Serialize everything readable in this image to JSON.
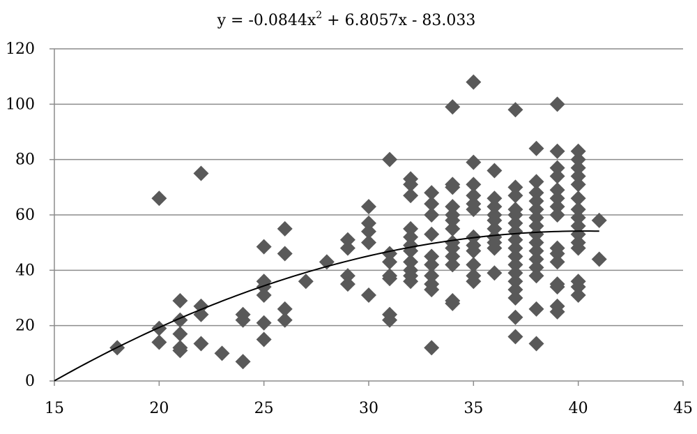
{
  "chart_data": {
    "type": "scatter",
    "title": "",
    "xlabel": "",
    "ylabel": "",
    "xlim": [
      15,
      45
    ],
    "ylim": [
      0,
      120
    ],
    "x_ticks": [
      "15",
      "20",
      "25",
      "30",
      "35",
      "40",
      "45"
    ],
    "y_ticks": [
      "0",
      "20",
      "40",
      "60",
      "80",
      "100",
      "120"
    ],
    "grid": "horizontal",
    "legend": "none",
    "marker": "diamond",
    "marker_color": "#595959",
    "trendline": {
      "type": "polynomial",
      "order": 2,
      "coefficients": [
        -0.0844,
        6.8057,
        -83.033
      ],
      "x_range": [
        15,
        41
      ],
      "color": "#000000",
      "equation_label": {
        "prefix": "y = -0.0844x",
        "power": "2",
        "suffix": " + 6.8057x - 83.033"
      }
    },
    "points": [
      [
        18,
        12
      ],
      [
        20,
        19
      ],
      [
        20,
        14
      ],
      [
        20,
        66
      ],
      [
        21,
        29
      ],
      [
        21,
        22
      ],
      [
        21,
        17
      ],
      [
        21,
        12
      ],
      [
        21,
        11
      ],
      [
        22,
        75
      ],
      [
        22,
        27
      ],
      [
        22,
        24
      ],
      [
        22,
        13.5
      ],
      [
        23,
        10
      ],
      [
        24,
        24
      ],
      [
        24,
        22
      ],
      [
        24,
        7
      ],
      [
        25,
        48.5
      ],
      [
        25,
        36
      ],
      [
        25,
        34
      ],
      [
        25,
        31
      ],
      [
        25,
        21
      ],
      [
        25,
        15
      ],
      [
        26,
        55
      ],
      [
        26,
        46
      ],
      [
        26,
        26
      ],
      [
        26,
        22
      ],
      [
        27,
        36
      ],
      [
        28,
        43
      ],
      [
        29,
        51
      ],
      [
        29,
        48
      ],
      [
        29,
        38
      ],
      [
        29,
        35
      ],
      [
        30,
        63
      ],
      [
        30,
        57
      ],
      [
        30,
        54
      ],
      [
        30,
        50
      ],
      [
        30,
        31
      ],
      [
        31,
        80
      ],
      [
        31,
        46
      ],
      [
        31,
        43
      ],
      [
        31,
        38
      ],
      [
        31,
        37
      ],
      [
        31,
        24
      ],
      [
        31,
        22
      ],
      [
        32,
        73
      ],
      [
        32,
        71
      ],
      [
        32,
        67
      ],
      [
        32,
        55
      ],
      [
        32,
        52
      ],
      [
        32,
        49
      ],
      [
        32,
        47
      ],
      [
        32,
        43
      ],
      [
        32,
        40
      ],
      [
        32,
        38
      ],
      [
        32,
        36
      ],
      [
        33,
        68
      ],
      [
        33,
        64
      ],
      [
        33,
        60
      ],
      [
        33,
        53
      ],
      [
        33,
        45
      ],
      [
        33,
        42
      ],
      [
        33,
        38
      ],
      [
        33,
        35
      ],
      [
        33,
        33
      ],
      [
        33,
        12
      ],
      [
        34,
        99
      ],
      [
        34,
        71
      ],
      [
        34,
        70
      ],
      [
        34,
        63
      ],
      [
        34,
        60
      ],
      [
        34,
        58
      ],
      [
        34,
        55
      ],
      [
        34,
        50
      ],
      [
        34,
        48
      ],
      [
        34,
        45
      ],
      [
        34,
        42
      ],
      [
        34,
        29
      ],
      [
        34,
        28
      ],
      [
        35,
        108
      ],
      [
        35,
        79
      ],
      [
        35,
        71
      ],
      [
        35,
        67
      ],
      [
        35,
        64
      ],
      [
        35,
        62
      ],
      [
        35,
        52
      ],
      [
        35,
        49
      ],
      [
        35,
        47
      ],
      [
        35,
        42
      ],
      [
        35,
        38
      ],
      [
        35,
        36
      ],
      [
        36,
        76
      ],
      [
        36,
        66
      ],
      [
        36,
        63
      ],
      [
        36,
        60
      ],
      [
        36,
        58
      ],
      [
        36,
        55
      ],
      [
        36,
        52
      ],
      [
        36,
        50
      ],
      [
        36,
        48
      ],
      [
        36,
        39
      ],
      [
        37,
        98
      ],
      [
        37,
        70
      ],
      [
        37,
        67
      ],
      [
        37,
        62
      ],
      [
        37,
        60
      ],
      [
        37,
        57
      ],
      [
        37,
        54
      ],
      [
        37,
        51
      ],
      [
        37,
        48
      ],
      [
        37,
        45
      ],
      [
        37,
        42
      ],
      [
        37,
        39
      ],
      [
        37,
        36
      ],
      [
        37,
        33
      ],
      [
        37,
        30
      ],
      [
        37,
        23
      ],
      [
        37,
        16
      ],
      [
        38,
        84
      ],
      [
        38,
        72
      ],
      [
        38,
        68
      ],
      [
        38,
        65
      ],
      [
        38,
        62
      ],
      [
        38,
        59
      ],
      [
        38,
        56
      ],
      [
        38,
        53
      ],
      [
        38,
        50
      ],
      [
        38,
        47
      ],
      [
        38,
        44
      ],
      [
        38,
        41
      ],
      [
        38,
        38
      ],
      [
        38,
        26
      ],
      [
        38,
        13.5
      ],
      [
        39,
        100
      ],
      [
        39,
        83
      ],
      [
        39,
        77
      ],
      [
        39,
        74
      ],
      [
        39,
        69
      ],
      [
        39,
        66
      ],
      [
        39,
        63
      ],
      [
        39,
        60
      ],
      [
        39,
        48
      ],
      [
        39,
        46
      ],
      [
        39,
        43
      ],
      [
        39,
        35
      ],
      [
        39,
        34
      ],
      [
        39,
        27
      ],
      [
        39,
        25
      ],
      [
        40,
        83
      ],
      [
        40,
        80
      ],
      [
        40,
        77
      ],
      [
        40,
        74
      ],
      [
        40,
        71
      ],
      [
        40,
        66
      ],
      [
        40,
        62
      ],
      [
        40,
        59
      ],
      [
        40,
        56
      ],
      [
        40,
        53
      ],
      [
        40,
        50
      ],
      [
        40,
        48
      ],
      [
        40,
        36
      ],
      [
        40,
        34
      ],
      [
        40,
        31
      ],
      [
        41,
        58
      ],
      [
        41,
        44
      ]
    ]
  }
}
